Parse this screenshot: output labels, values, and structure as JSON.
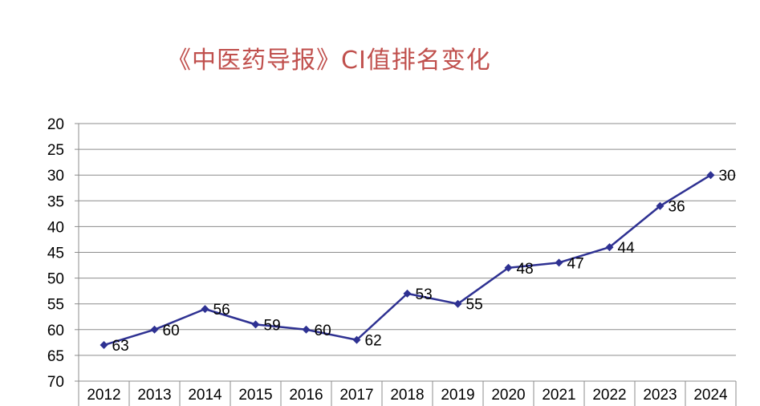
{
  "chart_data": {
    "type": "line",
    "title": "《中医药导报》CI值排名变化",
    "xlabel": "",
    "ylabel": "",
    "categories": [
      "2012",
      "2013",
      "2014",
      "2015",
      "2016",
      "2017",
      "2018",
      "2019",
      "2020",
      "2021",
      "2022",
      "2023",
      "2024"
    ],
    "series": [
      {
        "values": [
          63,
          60,
          56,
          59,
          60,
          62,
          53,
          55,
          48,
          47,
          44,
          36,
          30
        ]
      }
    ],
    "ylim": [
      20,
      70
    ],
    "y_reversed": true,
    "yticks": [
      20,
      25,
      30,
      35,
      40,
      45,
      50,
      55,
      60,
      65,
      70
    ],
    "grid": true,
    "data_labels": true,
    "line_color": "#2E3192",
    "title_color": "#C0504D",
    "marker": "diamond"
  }
}
